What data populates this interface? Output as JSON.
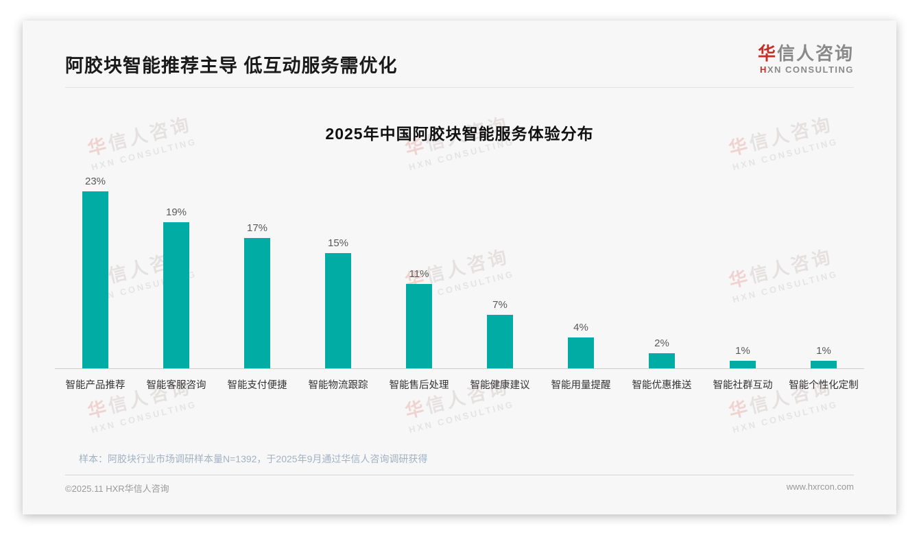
{
  "header": {
    "title": "阿胶块智能推荐主导 低互动服务需优化",
    "logo": {
      "cn_accent": "华",
      "cn_rest": "信人咨询",
      "en_accent": "H",
      "en_rest": "XN CONSULTING"
    }
  },
  "chart_data": {
    "type": "bar",
    "title": "2025年中国阿胶块智能服务体验分布",
    "categories": [
      "智能产品推荐",
      "智能客服咨询",
      "智能支付便捷",
      "智能物流跟踪",
      "智能售后处理",
      "智能健康建议",
      "智能用量提醒",
      "智能优惠推送",
      "智能社群互动",
      "智能个性化定制"
    ],
    "values": [
      23,
      19,
      17,
      15,
      11,
      7,
      4,
      2,
      1,
      1
    ],
    "unit": "%",
    "xlabel": "",
    "ylabel": "",
    "ylim": [
      0,
      25
    ],
    "grid": false,
    "legend": "none",
    "bar_color": "#00ACA3",
    "label_color": "#595959"
  },
  "watermark": {
    "cn_accent": "华",
    "cn_rest": "信人咨询",
    "en": "HXN CONSULTING"
  },
  "footnote": "样本：阿胶块行业市场调研样本量N=1392，于2025年9月通过华信人咨询调研获得",
  "footer": {
    "left": "©2025.11 HXR华信人咨询",
    "right": "www.hxrcon.com"
  }
}
